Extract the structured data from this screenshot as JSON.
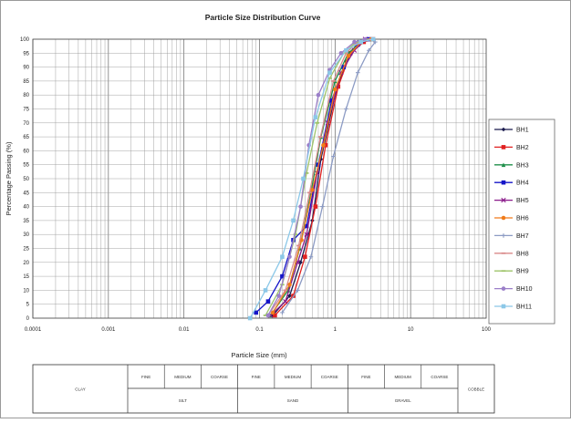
{
  "chart_data": {
    "type": "line",
    "title": "Particle Size Distribution Curve",
    "xlabel": "Particle Size (mm)",
    "ylabel": "Percentage Passing (%)",
    "xscale": "log",
    "xlim": [
      0.0001,
      100
    ],
    "ylim": [
      0,
      100
    ],
    "xticks": [
      {
        "value": 0.0001,
        "label": "0.0001"
      },
      {
        "value": 0.001,
        "label": "0.001"
      },
      {
        "value": 0.01,
        "label": "0.01"
      },
      {
        "value": 0.1,
        "label": "0.1"
      },
      {
        "value": 1,
        "label": "1"
      },
      {
        "value": 10,
        "label": "10"
      },
      {
        "value": 100,
        "label": "100"
      }
    ],
    "yticks": [
      0,
      5,
      10,
      15,
      20,
      25,
      30,
      35,
      40,
      45,
      50,
      55,
      60,
      65,
      70,
      75,
      80,
      85,
      90,
      95,
      100
    ],
    "grid": true,
    "legend_position": "right",
    "series": [
      {
        "name": "BH1",
        "color": "#1a1a4e",
        "marker": "diamond",
        "points": [
          [
            0.15,
            1
          ],
          [
            0.25,
            8
          ],
          [
            0.35,
            20
          ],
          [
            0.5,
            35
          ],
          [
            0.65,
            57
          ],
          [
            1.0,
            80
          ],
          [
            1.4,
            92
          ],
          [
            2.0,
            99
          ],
          [
            3.0,
            100
          ]
        ]
      },
      {
        "name": "BH2",
        "color": "#e02020",
        "marker": "square",
        "points": [
          [
            0.16,
            1
          ],
          [
            0.28,
            8
          ],
          [
            0.4,
            22
          ],
          [
            0.55,
            40
          ],
          [
            0.75,
            62
          ],
          [
            1.1,
            83
          ],
          [
            1.6,
            95
          ],
          [
            2.4,
            99
          ],
          [
            3.2,
            100
          ]
        ]
      },
      {
        "name": "BH3",
        "color": "#1f8f4a",
        "marker": "triangle",
        "points": [
          [
            0.14,
            1
          ],
          [
            0.24,
            10
          ],
          [
            0.34,
            25
          ],
          [
            0.48,
            45
          ],
          [
            0.65,
            65
          ],
          [
            1.0,
            85
          ],
          [
            1.5,
            95
          ],
          [
            2.2,
            99
          ],
          [
            3.0,
            100
          ]
        ]
      },
      {
        "name": "BH4",
        "color": "#1515c8",
        "marker": "square",
        "points": [
          [
            0.09,
            2
          ],
          [
            0.13,
            6
          ],
          [
            0.2,
            15
          ],
          [
            0.28,
            28
          ],
          [
            0.42,
            33
          ],
          [
            0.6,
            55
          ],
          [
            0.9,
            78
          ],
          [
            1.3,
            90
          ],
          [
            2.0,
            98
          ],
          [
            2.8,
            100
          ]
        ]
      },
      {
        "name": "BH5",
        "color": "#8a1a8a",
        "marker": "x",
        "points": [
          [
            0.14,
            1
          ],
          [
            0.22,
            6
          ],
          [
            0.32,
            20
          ],
          [
            0.42,
            30
          ],
          [
            0.58,
            52
          ],
          [
            0.8,
            70
          ],
          [
            1.2,
            88
          ],
          [
            1.8,
            96
          ],
          [
            2.5,
            100
          ]
        ]
      },
      {
        "name": "BH6",
        "color": "#f07b1a",
        "marker": "circle",
        "points": [
          [
            0.15,
            2
          ],
          [
            0.25,
            12
          ],
          [
            0.36,
            28
          ],
          [
            0.5,
            46
          ],
          [
            0.7,
            62
          ],
          [
            1.0,
            82
          ],
          [
            1.5,
            94
          ],
          [
            2.2,
            99
          ],
          [
            3.0,
            100
          ]
        ]
      },
      {
        "name": "BH7",
        "color": "#8c9bc4",
        "marker": "plus",
        "points": [
          [
            0.2,
            2
          ],
          [
            0.32,
            10
          ],
          [
            0.48,
            22
          ],
          [
            0.68,
            40
          ],
          [
            0.95,
            58
          ],
          [
            1.4,
            75
          ],
          [
            2.0,
            88
          ],
          [
            2.8,
            96
          ],
          [
            3.4,
            99
          ]
        ]
      },
      {
        "name": "BH8",
        "color": "#d98a8a",
        "marker": "dash",
        "points": [
          [
            0.13,
            1
          ],
          [
            0.22,
            10
          ],
          [
            0.33,
            26
          ],
          [
            0.46,
            45
          ],
          [
            0.64,
            65
          ],
          [
            0.95,
            85
          ],
          [
            1.4,
            95
          ],
          [
            2.0,
            99
          ],
          [
            2.8,
            100
          ]
        ]
      },
      {
        "name": "BH9",
        "color": "#9ec46a",
        "marker": "dash",
        "points": [
          [
            0.12,
            1
          ],
          [
            0.2,
            12
          ],
          [
            0.3,
            30
          ],
          [
            0.42,
            52
          ],
          [
            0.58,
            70
          ],
          [
            0.85,
            86
          ],
          [
            1.3,
            95
          ],
          [
            1.9,
            99
          ],
          [
            2.6,
            100
          ]
        ]
      },
      {
        "name": "BH10",
        "color": "#9b7fc9",
        "marker": "circle",
        "points": [
          [
            0.13,
            1
          ],
          [
            0.18,
            8
          ],
          [
            0.25,
            22
          ],
          [
            0.35,
            40
          ],
          [
            0.45,
            62
          ],
          [
            0.6,
            80
          ],
          [
            0.85,
            89
          ],
          [
            1.2,
            95
          ],
          [
            1.8,
            99
          ],
          [
            2.5,
            100
          ]
        ]
      },
      {
        "name": "BH11",
        "color": "#8cc8e8",
        "marker": "square",
        "points": [
          [
            0.075,
            0
          ],
          [
            0.12,
            10
          ],
          [
            0.2,
            22
          ],
          [
            0.28,
            35
          ],
          [
            0.38,
            50
          ],
          [
            0.55,
            72
          ],
          [
            0.85,
            88
          ],
          [
            1.4,
            96
          ],
          [
            2.2,
            99
          ],
          [
            3.2,
            100
          ]
        ]
      }
    ]
  },
  "classification_table": {
    "clay": "CLAY",
    "cobble": "COBBLE",
    "groups": [
      {
        "name": "SILT",
        "subs": [
          "FINE",
          "MEDIUM",
          "COARSE"
        ]
      },
      {
        "name": "SAND",
        "subs": [
          "FINE",
          "MEDIUM",
          "COARSE"
        ]
      },
      {
        "name": "GRAVEL",
        "subs": [
          "FINE",
          "MEDIUM",
          "COARSE"
        ]
      }
    ]
  }
}
